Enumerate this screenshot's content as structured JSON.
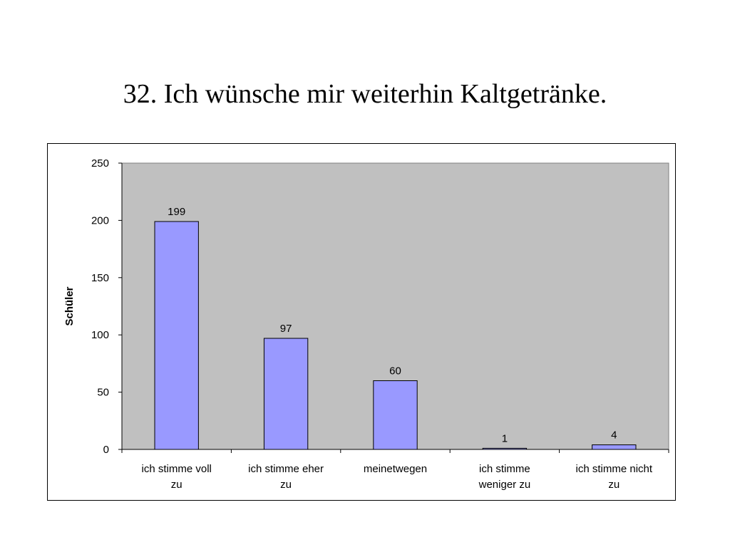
{
  "slide": {
    "title": "32. Ich wünsche mir weiterhin Kaltgetränke."
  },
  "colors": {
    "plot_background": "#c0c0c0",
    "bar_fill": "#9999ff",
    "bar_stroke": "#000000"
  },
  "chart_data": {
    "type": "bar",
    "categories": [
      [
        "ich stimme voll",
        "zu"
      ],
      [
        "ich stimme eher",
        "zu"
      ],
      [
        "meinetwegen"
      ],
      [
        "ich stimme",
        "weniger zu"
      ],
      [
        "ich stimme nicht",
        "zu"
      ]
    ],
    "values": [
      199,
      97,
      60,
      1,
      4
    ],
    "data_labels": [
      "199",
      "97",
      "60",
      "1",
      "4"
    ],
    "xlabel": "",
    "ylabel": "Schüler",
    "ylim": [
      0,
      250
    ],
    "yticks": [
      0,
      50,
      100,
      150,
      200,
      250
    ],
    "grid": false,
    "legend": "none"
  }
}
